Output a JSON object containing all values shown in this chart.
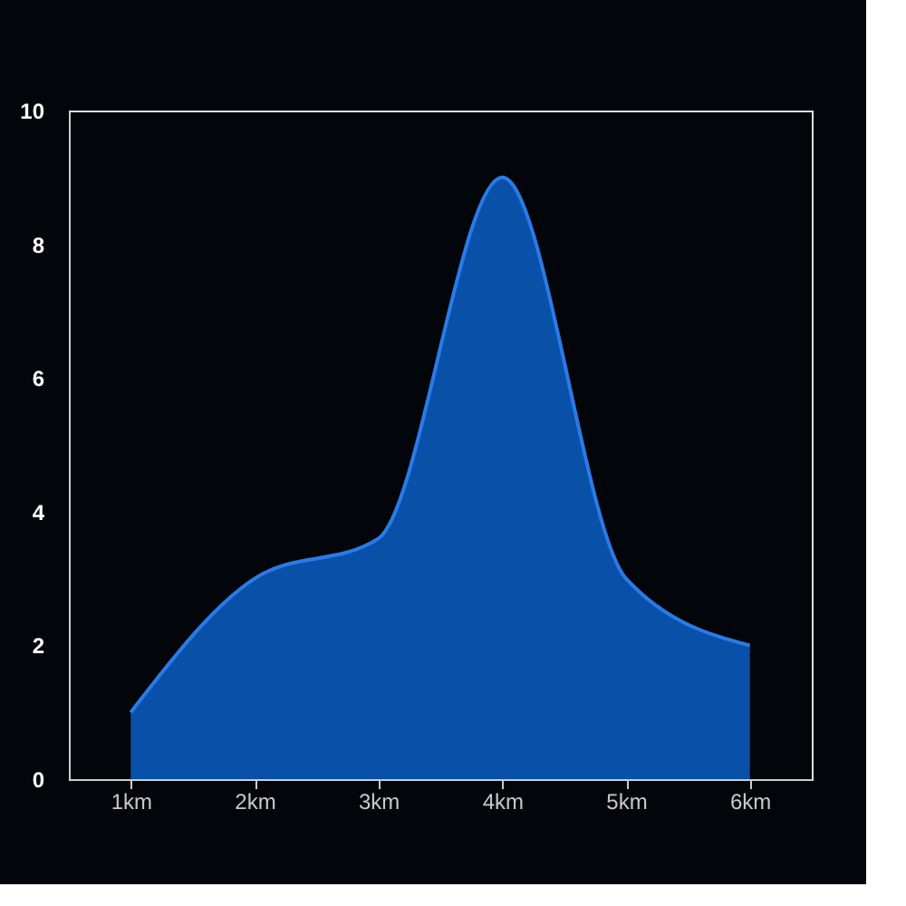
{
  "chart_data": {
    "type": "area",
    "categories": [
      "1km",
      "2km",
      "3km",
      "4km",
      "5km",
      "6km"
    ],
    "series": [
      {
        "color": "#0a5fc4",
        "values": [
          1,
          3,
          3.6,
          9,
          3,
          2
        ]
      }
    ],
    "ylim": [
      0,
      10
    ],
    "yticks": [
      0,
      2,
      4,
      6,
      8,
      10
    ],
    "grid": false
  }
}
